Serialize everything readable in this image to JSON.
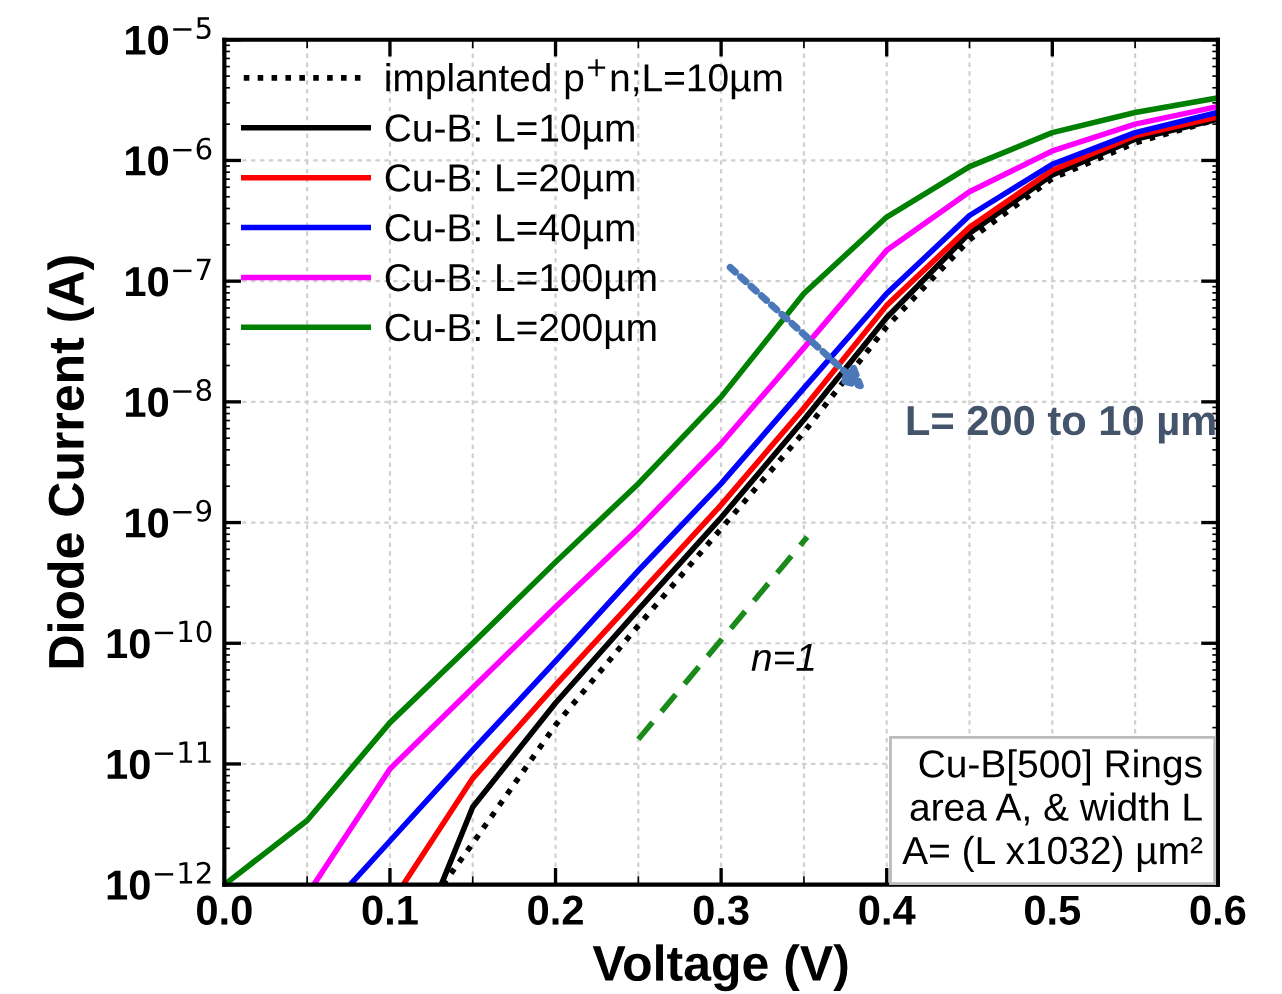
{
  "chart_data": {
    "type": "line",
    "xlabel": "Voltage (V)",
    "ylabel": "Diode Current (A)",
    "log": "y",
    "xlim": [
      0.0,
      0.6
    ],
    "xticks": [
      {
        "value": 0.0,
        "label": "0.0"
      },
      0.1,
      0.2,
      0.3,
      0.4,
      0.5,
      0.6
    ],
    "ylim": [
      1e-12,
      1e-05
    ],
    "yticks": [
      {
        "value": 1e-12,
        "label": "10$^{−12}$"
      },
      {
        "value": 1e-11,
        "label": "10$^{−11}$"
      },
      {
        "value": 1e-10,
        "label": "10$^{−10}$"
      },
      {
        "value": 1e-09,
        "label": "10$^{−9}$"
      },
      {
        "value": 1e-08,
        "label": "10$^{−8}$"
      },
      {
        "value": 1e-07,
        "label": "10$^{−7}$"
      },
      {
        "value": 1e-06,
        "label": "10$^{−6}$"
      },
      {
        "value": 1e-05,
        "label": "10$^{−5}$"
      }
    ],
    "grid": true,
    "legend": "top left",
    "marker": "none",
    "series": [
      {
        "name": "implanted p$^{+}$n;L=10µm",
        "color": "#000000",
        "line_style": "dotted",
        "x": [
          0.132,
          0.15,
          0.2,
          0.25,
          0.3,
          0.35,
          0.4,
          0.45,
          0.5,
          0.55,
          0.6
        ],
        "values": [
          1e-12,
          2.2e-12,
          2.1e-11,
          1.4e-10,
          8.9e-10,
          5.6e-09,
          4.2e-08,
          2.2e-07,
          7.1e-07,
          1.4e-06,
          2.2e-06
        ]
      },
      {
        "name": "Cu-B: L=10µm",
        "color": "#000000",
        "line_style": "solid",
        "x": [
          0.131,
          0.15,
          0.2,
          0.25,
          0.3,
          0.35,
          0.4,
          0.45,
          0.5,
          0.55,
          0.6
        ],
        "values": [
          1e-12,
          4.4e-12,
          3.2e-11,
          1.9e-10,
          1.1e-09,
          7.1e-09,
          5e-08,
          2.5e-07,
          7.6e-07,
          1.5e-06,
          2.2e-06
        ]
      },
      {
        "name": "Cu-B: L=20µm",
        "color": "#ff0000",
        "line_style": "solid",
        "x": [
          0.108,
          0.15,
          0.2,
          0.25,
          0.3,
          0.35,
          0.4,
          0.45,
          0.5,
          0.55,
          0.6
        ],
        "values": [
          1e-12,
          7.6e-12,
          4.5e-11,
          2.5e-10,
          1.4e-09,
          8.9e-09,
          6.3e-08,
          2.8e-07,
          8.3e-07,
          1.6e-06,
          2.3e-06
        ]
      },
      {
        "name": "Cu-B: L=40µm",
        "color": "#0000ff",
        "line_style": "solid",
        "x": [
          0.076,
          0.1,
          0.15,
          0.2,
          0.25,
          0.3,
          0.35,
          0.4,
          0.45,
          0.5,
          0.55,
          0.6
        ],
        "values": [
          1e-12,
          2.3e-12,
          1.3e-11,
          7.1e-11,
          4e-10,
          2.1e-09,
          1.3e-08,
          7.9e-08,
          3.5e-07,
          9.3e-07,
          1.7e-06,
          2.5e-06
        ]
      },
      {
        "name": "Cu-B: L=100µm",
        "color": "#ff00ff",
        "line_style": "solid",
        "x": [
          0.054,
          0.1,
          0.2,
          0.25,
          0.3,
          0.35,
          0.4,
          0.45,
          0.5,
          0.55,
          0.6
        ],
        "values": [
          1e-12,
          9.1e-12,
          2e-10,
          8.9e-10,
          4.5e-09,
          2.8e-08,
          1.8e-07,
          5.5e-07,
          1.2e-06,
          2e-06,
          2.8e-06
        ]
      },
      {
        "name": "Cu-B: L=200µm",
        "color": "#008000",
        "line_style": "solid",
        "x": [
          0.0,
          0.05,
          0.1,
          0.15,
          0.2,
          0.25,
          0.3,
          0.35,
          0.4,
          0.45,
          0.5,
          0.55,
          0.6
        ],
        "values": [
          1e-12,
          3.4e-12,
          2.2e-11,
          1e-10,
          4.7e-10,
          2.1e-09,
          1.1e-08,
          7.9e-08,
          3.4e-07,
          8.9e-07,
          1.7e-06,
          2.5e-06,
          3.3e-06
        ]
      },
      {
        "color": "#1a8a1a",
        "line_style": "dashed",
        "x": [
          0.25,
          0.352
        ],
        "values": [
          1.6e-11,
          7.6e-10
        ]
      }
    ],
    "annotations": [
      "n=1",
      "L= 200 to 10 µm",
      "Cu-B[500] Rings\narea A, & width L\nA= (L x1032) µm²"
    ]
  }
}
